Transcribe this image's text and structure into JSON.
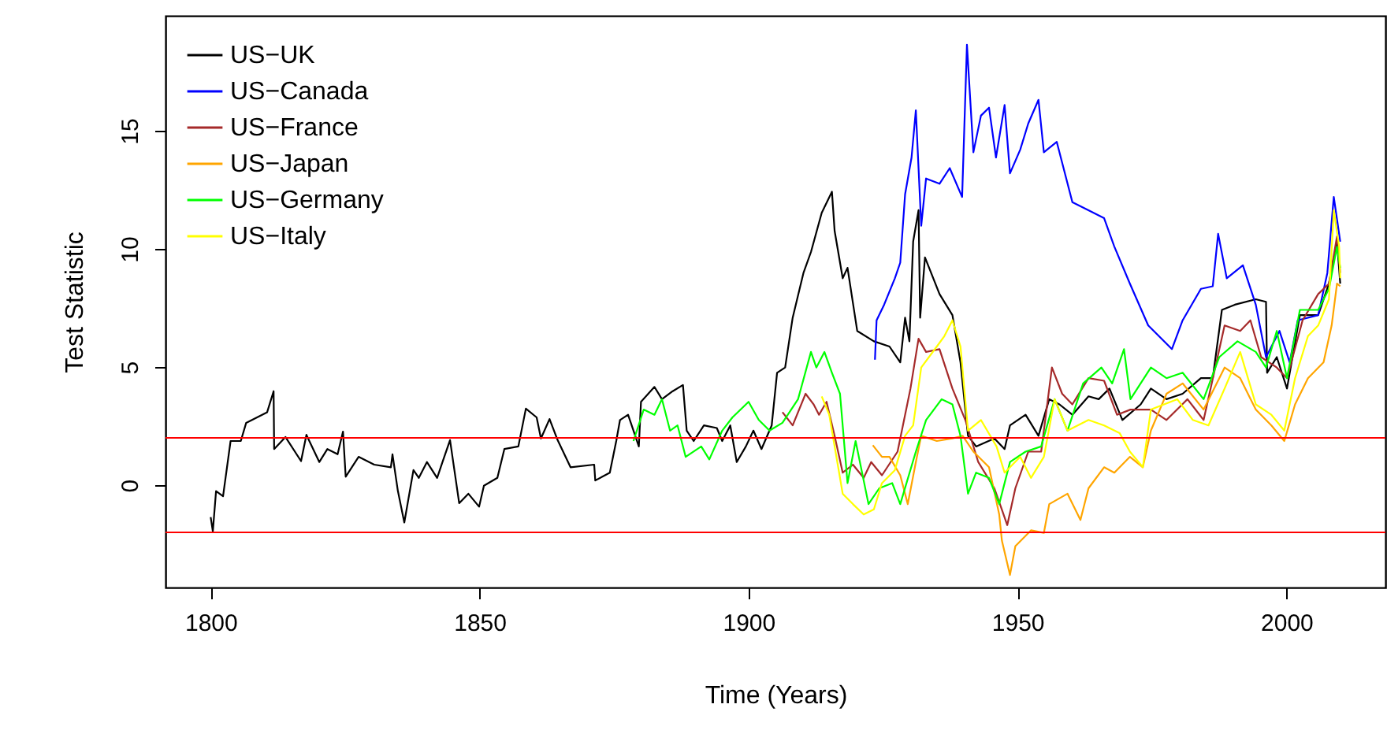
{
  "chart_data": {
    "type": "line",
    "xlabel": "Time (Years)",
    "ylabel": "Test Statistic",
    "xlim": [
      1791.6,
      2018.4
    ],
    "ylim": [
      -4.33,
      19.87
    ],
    "xticks": [
      1800,
      1850,
      1900,
      1950,
      2000
    ],
    "yticks": [
      0,
      5,
      10,
      15
    ],
    "grid": false,
    "legend": "top left",
    "line_style": "solid",
    "marker": "none",
    "ref_lines": [
      {
        "axis": "y",
        "value": 2,
        "color": "#ff0000"
      },
      {
        "axis": "y",
        "value": -2,
        "color": "#ff0000"
      }
    ],
    "series": [
      {
        "name": "US−UK",
        "color": "#000000",
        "x": [
          1800,
          1800.4,
          1801,
          1802.3,
          1803.7,
          1805.6,
          1806.6,
          1810.5,
          1811.7,
          1811.8,
          1813.9,
          1816.8,
          1817.8,
          1820.2,
          1821.7,
          1823.6,
          1824.6,
          1825.1,
          1827.5,
          1830.4,
          1833.5,
          1833.8,
          1834.8,
          1836,
          1837.7,
          1838.7,
          1840.2,
          1842.1,
          1843.1,
          1844.5,
          1846.2,
          1847.9,
          1849.9,
          1850.8,
          1853.3,
          1854.6,
          1857.2,
          1858.6,
          1860.6,
          1861.4,
          1863,
          1864.5,
          1866.9,
          1871.3,
          1871.5,
          1874.2,
          1875.4,
          1876.1,
          1877.6,
          1879.6,
          1880,
          1882.5,
          1883.9,
          1885.9,
          1887.8,
          1888.5,
          1889.8,
          1891.7,
          1894.1,
          1895.1,
          1896.6,
          1897.8,
          1899.5,
          1900.9,
          1902.4,
          1904.3,
          1905.3,
          1906.8,
          1908.2,
          1910.2,
          1911.6,
          1913.6,
          1915.5,
          1916,
          1917.5,
          1918.4,
          1920.2,
          1923.3,
          1926.2,
          1928.2,
          1929.1,
          1929.9,
          1930.6,
          1931.6,
          1931.9,
          1932.8,
          1935.5,
          1937.9,
          1939.4,
          1940.8,
          1942.3,
          1945.7,
          1947.6,
          1948.6,
          1951.5,
          1953.9,
          1955.9,
          1957.8,
          1960.2,
          1963.2,
          1965.1,
          1967.1,
          1969.5,
          1972.9,
          1974.8,
          1977.7,
          1980.7,
          1984.1,
          1986.3,
          1988,
          1990.4,
          1994.3,
          1996.2,
          1996.4,
          1998.2,
          2000.1,
          2002.5,
          2005.9,
          2007.9,
          2009.4,
          2010
        ],
        "values": [
          -1.35,
          -1.95,
          -0.25,
          -0.47,
          1.87,
          1.87,
          2.64,
          3.09,
          3.98,
          1.53,
          2.04,
          1.02,
          2.13,
          0.98,
          1.53,
          1.31,
          2.27,
          0.36,
          1.2,
          0.87,
          0.76,
          1.31,
          -0.24,
          -1.58,
          0.64,
          0.31,
          0.98,
          0.31,
          0.98,
          1.91,
          -0.76,
          -0.36,
          -0.91,
          -0.02,
          0.31,
          1.53,
          1.64,
          3.24,
          2.87,
          1.98,
          2.8,
          1.91,
          0.76,
          0.87,
          0.2,
          0.53,
          1.87,
          2.76,
          2.98,
          1.64,
          3.53,
          4.16,
          3.64,
          3.98,
          4.24,
          2.31,
          1.87,
          2.53,
          2.42,
          1.87,
          2.53,
          0.98,
          1.64,
          2.31,
          1.53,
          2.53,
          4.76,
          4.98,
          7.09,
          8.98,
          9.87,
          11.53,
          12.42,
          10.76,
          8.76,
          9.2,
          6.53,
          6.09,
          5.87,
          5.2,
          7.09,
          6.09,
          10.31,
          11.64,
          7.09,
          9.64,
          8.09,
          7.2,
          5.2,
          2.09,
          1.64,
          1.98,
          1.53,
          2.53,
          2.98,
          2.09,
          3.64,
          3.42,
          2.98,
          3.76,
          3.64,
          4.09,
          2.76,
          3.42,
          4.09,
          3.64,
          3.87,
          4.53,
          4.53,
          7.42,
          7.64,
          7.87,
          7.76,
          4.76,
          5.42,
          4.09,
          7.2,
          7.2,
          8.53,
          10.31,
          8.53
        ]
      },
      {
        "name": "US−Canada",
        "color": "#0000ff",
        "x": [
          1923.5,
          1923.8,
          1925.2,
          1927.2,
          1928.2,
          1929.1,
          1930.3,
          1931.1,
          1932.1,
          1933,
          1935.5,
          1937.4,
          1939.7,
          1940.6,
          1941.8,
          1943.2,
          1944.7,
          1946,
          1947.6,
          1948.6,
          1950.5,
          1952,
          1953.9,
          1954.9,
          1957.3,
          1960.2,
          1963.2,
          1966.1,
          1968,
          1970.9,
          1974.3,
          1978.7,
          1980.7,
          1984.1,
          1986.3,
          1987.3,
          1988.9,
          1991.9,
          1994.3,
          1996.2,
          1998.7,
          2000.6,
          2002.1,
          2005.9,
          2007.6,
          2008.8,
          2010
        ],
        "values": [
          5.31,
          6.98,
          7.64,
          8.76,
          9.42,
          12.31,
          13.87,
          15.87,
          10.98,
          12.98,
          12.76,
          13.42,
          12.2,
          18.64,
          14.09,
          15.64,
          15.98,
          13.87,
          16.09,
          13.2,
          14.2,
          15.31,
          16.31,
          14.09,
          14.53,
          11.98,
          11.64,
          11.3,
          10.1,
          8.53,
          6.76,
          5.76,
          6.98,
          8.31,
          8.42,
          10.64,
          8.76,
          9.31,
          7.64,
          5.42,
          6.53,
          5.2,
          6.98,
          7.2,
          8.98,
          12.2,
          10.31
        ]
      },
      {
        "name": "US−France",
        "color": "#a52a2a",
        "x": [
          1906.3,
          1908.2,
          1910.6,
          1912.1,
          1913.1,
          1914.5,
          1916,
          1917.5,
          1919.4,
          1921.4,
          1922.8,
          1924.8,
          1927.7,
          1930.1,
          1931.6,
          1933,
          1935.5,
          1937.9,
          1940.3,
          1942.7,
          1945.7,
          1948.1,
          1949.6,
          1952,
          1954.4,
          1956.4,
          1958.3,
          1960.2,
          1963.2,
          1966.1,
          1968.5,
          1971,
          1974.8,
          1977.7,
          1981.6,
          1984.6,
          1988.5,
          1991.4,
          1993.3,
          1995.3,
          1998.2,
          2000.1,
          2003,
          2005.9,
          2007.9,
          2009.4,
          2010
        ],
        "values": [
          3.09,
          2.53,
          3.87,
          3.42,
          2.98,
          3.53,
          2.09,
          0.53,
          0.87,
          0.31,
          0.98,
          0.42,
          1.42,
          4.09,
          6.2,
          5.64,
          5.76,
          4.09,
          2.76,
          0.98,
          -0.13,
          -1.69,
          -0.13,
          1.42,
          1.42,
          4.98,
          3.87,
          3.42,
          4.53,
          4.42,
          2.98,
          3.2,
          3.2,
          2.76,
          3.64,
          2.76,
          6.76,
          6.53,
          6.98,
          5.42,
          4.98,
          4.53,
          6.98,
          8.09,
          8.53,
          10.53,
          8.98
        ]
      },
      {
        "name": "US−Japan",
        "color": "#ffa500",
        "x": [
          1923.1,
          1924.8,
          1926.2,
          1928.2,
          1929.6,
          1931.1,
          1932.1,
          1935,
          1937.9,
          1939.8,
          1941.8,
          1944.7,
          1946.6,
          1947.1,
          1948.6,
          1949.6,
          1952.5,
          1954.9,
          1955.9,
          1959.3,
          1961.7,
          1963.2,
          1966.1,
          1968,
          1970.9,
          1973.3,
          1974.8,
          1977.7,
          1980.7,
          1984.6,
          1988.5,
          1991.4,
          1994.3,
          1997.2,
          1999.6,
          2001.6,
          2004,
          2006.9,
          2008.4,
          2009.4,
          2010
        ],
        "values": [
          1.69,
          1.2,
          1.2,
          0.42,
          -0.8,
          0.98,
          2.09,
          1.87,
          1.98,
          2.09,
          1.42,
          0.76,
          -1.24,
          -2.35,
          -3.8,
          -2.58,
          -1.91,
          -2.02,
          -0.8,
          -0.36,
          -1.47,
          -0.13,
          0.76,
          0.53,
          1.2,
          0.76,
          2.31,
          3.87,
          4.31,
          3.2,
          4.98,
          4.53,
          3.2,
          2.53,
          1.87,
          3.42,
          4.53,
          5.2,
          6.76,
          8.53,
          8.42
        ]
      },
      {
        "name": "US−Germany",
        "color": "#00ff00",
        "x": [
          1878.6,
          1880.5,
          1882.5,
          1883.9,
          1885.4,
          1886.8,
          1888.3,
          1891.2,
          1892.7,
          1895.1,
          1897,
          1900,
          1901.9,
          1903.9,
          1906.3,
          1909.2,
          1911.6,
          1912.6,
          1914.1,
          1915.5,
          1917,
          1918.4,
          1919.9,
          1922.3,
          1924.3,
          1926.7,
          1928.2,
          1931.1,
          1933,
          1935.9,
          1937.9,
          1939.4,
          1940.8,
          1942.3,
          1944.7,
          1946.6,
          1948.6,
          1951.5,
          1954.4,
          1956.9,
          1959.3,
          1962.2,
          1965.6,
          1967.6,
          1969.8,
          1971,
          1974.8,
          1977.7,
          1980.7,
          1984.6,
          1987.5,
          1990.9,
          1994.3,
          1996.2,
          1998.2,
          2000.1,
          2002.5,
          2005.9,
          2007.9,
          2009.4,
          2010
        ],
        "values": [
          1.87,
          3.2,
          2.98,
          3.64,
          2.31,
          2.53,
          1.2,
          1.64,
          1.09,
          2.31,
          2.87,
          3.53,
          2.76,
          2.31,
          2.64,
          3.64,
          5.64,
          4.98,
          5.64,
          4.76,
          3.87,
          0.09,
          1.87,
          -0.8,
          -0.13,
          0.09,
          -0.8,
          1.42,
          2.76,
          3.64,
          3.42,
          2.09,
          -0.36,
          0.53,
          0.31,
          -0.8,
          0.98,
          1.42,
          1.64,
          3.64,
          2.31,
          4.31,
          4.98,
          4.31,
          5.76,
          3.64,
          4.98,
          4.53,
          4.76,
          3.64,
          5.42,
          6.09,
          5.64,
          4.98,
          6.53,
          4.53,
          7.42,
          7.42,
          8.31,
          10.09,
          9.2
        ]
      },
      {
        "name": "US−Italy",
        "color": "#ffff00",
        "x": [
          1913.6,
          1915,
          1916.5,
          1917.5,
          1919.4,
          1921.4,
          1923.3,
          1924.8,
          1927.2,
          1929.1,
          1930.6,
          1932.1,
          1935,
          1936.4,
          1937.9,
          1939.4,
          1940.8,
          1943.2,
          1946.1,
          1947.6,
          1950.5,
          1952.5,
          1954.9,
          1956.9,
          1959.3,
          1963.2,
          1966.1,
          1969,
          1970.9,
          1973.3,
          1974.8,
          1979.7,
          1982.6,
          1985.5,
          1988.5,
          1991.4,
          1994.3,
          1997.2,
          1999.6,
          2001.6,
          2004,
          2005.9,
          2007.9,
          2008.8,
          2009.8,
          2010
        ],
        "values": [
          3.76,
          2.98,
          0.98,
          -0.36,
          -0.8,
          -1.24,
          -1.02,
          0.09,
          0.64,
          2.09,
          2.53,
          4.98,
          5.87,
          6.31,
          6.98,
          5.87,
          2.31,
          2.76,
          1.64,
          0.53,
          1.2,
          0.31,
          1.2,
          3.64,
          2.31,
          2.76,
          2.53,
          2.2,
          1.42,
          0.76,
          3.2,
          3.64,
          2.76,
          2.53,
          4.09,
          5.64,
          3.42,
          2.98,
          2.31,
          4.53,
          6.31,
          6.76,
          7.87,
          11.64,
          10.09,
          8.76
        ]
      }
    ]
  }
}
